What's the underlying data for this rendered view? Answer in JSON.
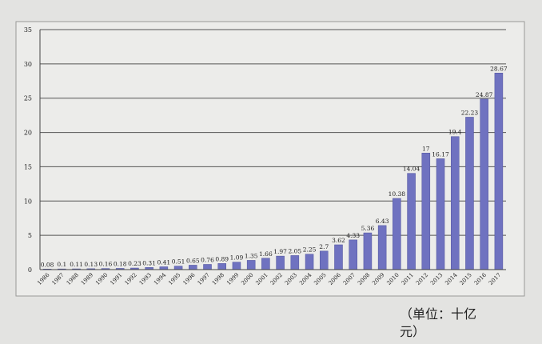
{
  "chart_data": {
    "type": "bar",
    "categories": [
      "1986",
      "1987",
      "1988",
      "1989",
      "1990",
      "1991",
      "1992",
      "1993",
      "1994",
      "1995",
      "1996",
      "1997",
      "1998",
      "1999",
      "2000",
      "2001",
      "2002",
      "2003",
      "2004",
      "2005",
      "2006",
      "2007",
      "2008",
      "2009",
      "2010",
      "2011",
      "2012",
      "2013",
      "2014",
      "2015",
      "2016",
      "2017"
    ],
    "values": [
      0.08,
      0.1,
      0.11,
      0.13,
      0.16,
      0.18,
      0.23,
      0.31,
      0.41,
      0.51,
      0.65,
      0.76,
      0.89,
      1.09,
      1.35,
      1.66,
      1.97,
      2.05,
      2.25,
      2.7,
      3.62,
      4.33,
      5.36,
      6.43,
      10.38,
      14.04,
      17,
      16.17,
      19.4,
      22.23,
      24.87,
      28.67
    ],
    "data_labels": [
      "0.08",
      "0.1",
      "0.11",
      "0.13",
      "0.16",
      "0.18",
      "0.23",
      "0.31",
      "0.41",
      "0.51",
      "0.65",
      "0.76",
      "0.89",
      "1.09",
      "1.35",
      "1.66",
      "1.97",
      "2.05",
      "2.25",
      "2.7",
      "3.62",
      "4.33",
      "5.36",
      "6.43",
      "10.38",
      "14.04",
      "17",
      "16.17",
      "19.4",
      "22.23",
      "24.87",
      "28.67"
    ],
    "y_ticks": [
      "0",
      "5",
      "10",
      "15",
      "20",
      "25",
      "30",
      "35"
    ],
    "ylim": [
      0,
      35
    ],
    "grid": true,
    "legend": "none",
    "colors": {
      "bar": "#6f72c0",
      "bar_edge": "#4f529e",
      "grid": "#555555",
      "frame": "#444444",
      "text": "#222222"
    }
  },
  "unit_note": "（单位：十亿\n元）"
}
